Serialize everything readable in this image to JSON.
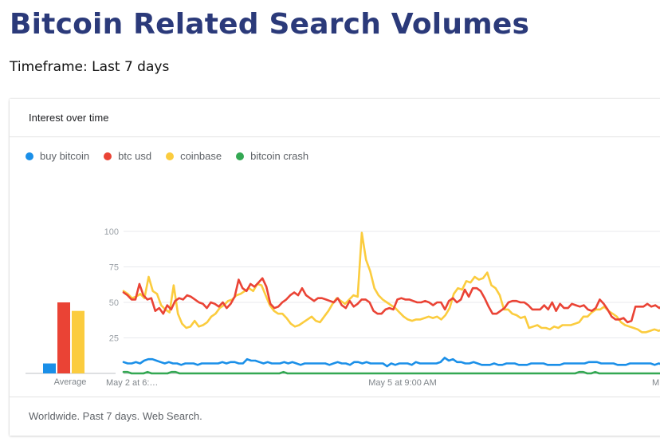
{
  "page": {
    "title": "Bitcoin Related Search Volumes",
    "timeframe": "Timeframe: Last 7 days"
  },
  "card": {
    "title": "Interest over time",
    "footer": "Worldwide. Past 7 days. Web Search."
  },
  "legend": [
    {
      "label": "buy bitcoin",
      "color": "#1a8fe8"
    },
    {
      "label": "btc usd",
      "color": "#ea4335"
    },
    {
      "label": "coinbase",
      "color": "#fbcc3e"
    },
    {
      "label": "bitcoin crash",
      "color": "#34a853"
    }
  ],
  "chart_data": {
    "type": "line",
    "ylim": [
      0,
      100
    ],
    "yticks": [
      25,
      50,
      75,
      100
    ],
    "xtick_labels": [
      "May 2 at 6:…",
      "May 5 at 9:00 AM",
      "M"
    ],
    "average_label": "Average",
    "averages": [
      {
        "name": "buy bitcoin",
        "value": 7
      },
      {
        "name": "btc usd",
        "value": 50
      },
      {
        "name": "coinbase",
        "value": 44
      },
      {
        "name": "bitcoin crash",
        "value": 0
      }
    ],
    "series": [
      {
        "name": "buy bitcoin",
        "color": "#1a8fe8",
        "values": [
          8,
          7,
          7,
          8,
          7,
          9,
          10,
          10,
          9,
          8,
          7,
          8,
          7,
          7,
          6,
          7,
          7,
          7,
          6,
          7,
          7,
          7,
          7,
          7,
          8,
          7,
          8,
          8,
          7,
          7,
          10,
          9,
          9,
          8,
          7,
          8,
          7,
          7,
          7,
          8,
          7,
          8,
          7,
          6,
          7,
          7,
          7,
          7,
          7,
          7,
          6,
          7,
          8,
          7,
          7,
          6,
          8,
          8,
          7,
          8,
          7,
          7,
          7,
          7,
          5,
          7,
          6,
          7,
          7,
          7,
          6,
          8,
          7,
          7,
          7,
          7,
          7,
          8,
          11,
          9,
          10,
          8,
          8,
          7,
          7,
          8,
          7,
          6,
          6,
          6,
          7,
          6,
          6,
          7,
          7,
          7,
          6,
          6,
          6,
          7,
          7,
          7,
          7,
          6,
          6,
          6,
          6,
          7,
          7,
          7,
          7,
          7,
          7,
          8,
          8,
          8,
          7,
          7,
          7,
          7,
          6,
          6,
          6,
          7,
          7,
          7,
          7,
          7,
          7,
          6,
          7,
          6,
          6,
          6
        ]
      },
      {
        "name": "btc usd",
        "color": "#ea4335",
        "values": [
          57,
          55,
          52,
          52,
          63,
          55,
          52,
          53,
          44,
          46,
          42,
          48,
          45,
          51,
          53,
          52,
          55,
          54,
          52,
          50,
          49,
          46,
          50,
          49,
          47,
          50,
          46,
          49,
          54,
          66,
          60,
          58,
          63,
          61,
          64,
          67,
          61,
          49,
          46,
          47,
          50,
          52,
          55,
          57,
          55,
          60,
          55,
          53,
          51,
          53,
          53,
          52,
          51,
          50,
          53,
          48,
          46,
          51,
          47,
          49,
          52,
          52,
          50,
          44,
          42,
          42,
          45,
          46,
          45,
          52,
          53,
          52,
          52,
          51,
          50,
          50,
          51,
          50,
          48,
          50,
          50,
          45,
          51,
          53,
          50,
          52,
          59,
          54,
          60,
          60,
          58,
          53,
          47,
          42,
          42,
          44,
          46,
          50,
          51,
          51,
          50,
          50,
          48,
          45,
          45,
          45,
          48,
          45,
          50,
          44,
          49,
          46,
          46,
          49,
          48,
          47,
          48,
          45,
          44,
          46,
          52,
          49,
          45,
          40,
          38,
          38,
          39,
          36,
          37,
          47,
          47,
          47,
          49,
          47,
          48,
          46,
          48,
          45,
          45
        ]
      },
      {
        "name": "coinbase",
        "color": "#fbcc3e",
        "values": [
          58,
          56,
          53,
          54,
          56,
          53,
          68,
          58,
          56,
          48,
          45,
          43,
          62,
          42,
          35,
          32,
          33,
          37,
          33,
          34,
          36,
          40,
          42,
          46,
          48,
          51,
          52,
          55,
          56,
          58,
          60,
          58,
          63,
          62,
          55,
          48,
          44,
          42,
          42,
          39,
          35,
          33,
          34,
          36,
          38,
          40,
          37,
          36,
          40,
          44,
          49,
          53,
          51,
          49,
          52,
          55,
          54,
          99,
          80,
          72,
          60,
          55,
          52,
          50,
          48,
          46,
          43,
          40,
          38,
          37,
          38,
          38,
          39,
          40,
          39,
          40,
          38,
          41,
          46,
          56,
          60,
          59,
          65,
          64,
          68,
          66,
          67,
          71,
          62,
          60,
          55,
          45,
          45,
          42,
          41,
          39,
          40,
          32,
          33,
          34,
          32,
          32,
          31,
          33,
          32,
          34,
          34,
          34,
          35,
          36,
          40,
          40,
          43,
          45,
          45,
          47,
          44,
          42,
          40,
          36,
          34,
          33,
          32,
          31,
          29,
          29,
          30,
          31,
          30,
          31,
          32,
          35
        ]
      },
      {
        "name": "bitcoin crash",
        "color": "#34a853",
        "values": [
          1,
          1,
          0,
          0,
          0,
          0,
          1,
          0,
          0,
          0,
          0,
          0,
          1,
          1,
          0,
          0,
          0,
          0,
          0,
          0,
          0,
          0,
          0,
          0,
          0,
          0,
          0,
          0,
          0,
          0,
          0,
          0,
          0,
          0,
          0,
          0,
          0,
          0,
          0,
          0,
          1,
          0,
          0,
          0,
          0,
          0,
          0,
          0,
          0,
          0,
          0,
          0,
          0,
          0,
          0,
          0,
          0,
          0,
          0,
          0,
          0,
          0,
          0,
          0,
          0,
          0,
          0,
          0,
          0,
          0,
          0,
          0,
          0,
          0,
          0,
          0,
          0,
          0,
          0,
          0,
          0,
          0,
          0,
          0,
          0,
          0,
          0,
          0,
          0,
          0,
          0,
          0,
          0,
          0,
          0,
          0,
          0,
          0,
          0,
          0,
          0,
          0,
          0,
          0,
          0,
          0,
          0,
          0,
          0,
          0,
          0,
          0,
          0,
          0,
          1,
          1,
          0,
          0,
          1,
          0,
          0,
          0,
          0,
          0,
          0,
          0,
          0,
          0,
          0,
          0,
          0,
          0,
          0,
          0,
          0,
          0,
          0,
          0
        ]
      }
    ]
  }
}
